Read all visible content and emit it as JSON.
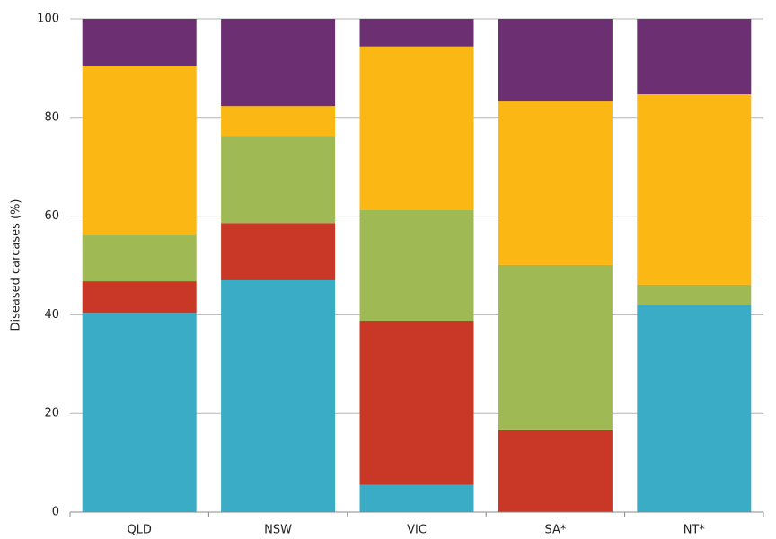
{
  "chart_data": {
    "type": "stacked_bar",
    "y_label": "Diseased carcases (%)",
    "categories": [
      "QLD",
      "NSW",
      "VIC",
      "SA*",
      "NT*"
    ],
    "series": [
      {
        "color": "#3aacc6",
        "values": [
          40.4,
          47.0,
          5.5,
          0,
          42.0
        ]
      },
      {
        "color": "#c93827",
        "values": [
          6.4,
          11.6,
          33.3,
          16.6,
          0
        ]
      },
      {
        "color": "#9fba55",
        "values": [
          9.3,
          17.7,
          22.4,
          33.5,
          4.1
        ]
      },
      {
        "color": "#fbb714",
        "values": [
          34.4,
          6.0,
          33.2,
          33.3,
          38.6
        ]
      },
      {
        "color": "#6b2f72",
        "values": [
          9.5,
          17.7,
          5.6,
          16.6,
          15.3
        ]
      }
    ],
    "ylim": [
      0,
      100
    ],
    "yticks": [
      0,
      20,
      40,
      60,
      80,
      100
    ],
    "grid": true
  }
}
